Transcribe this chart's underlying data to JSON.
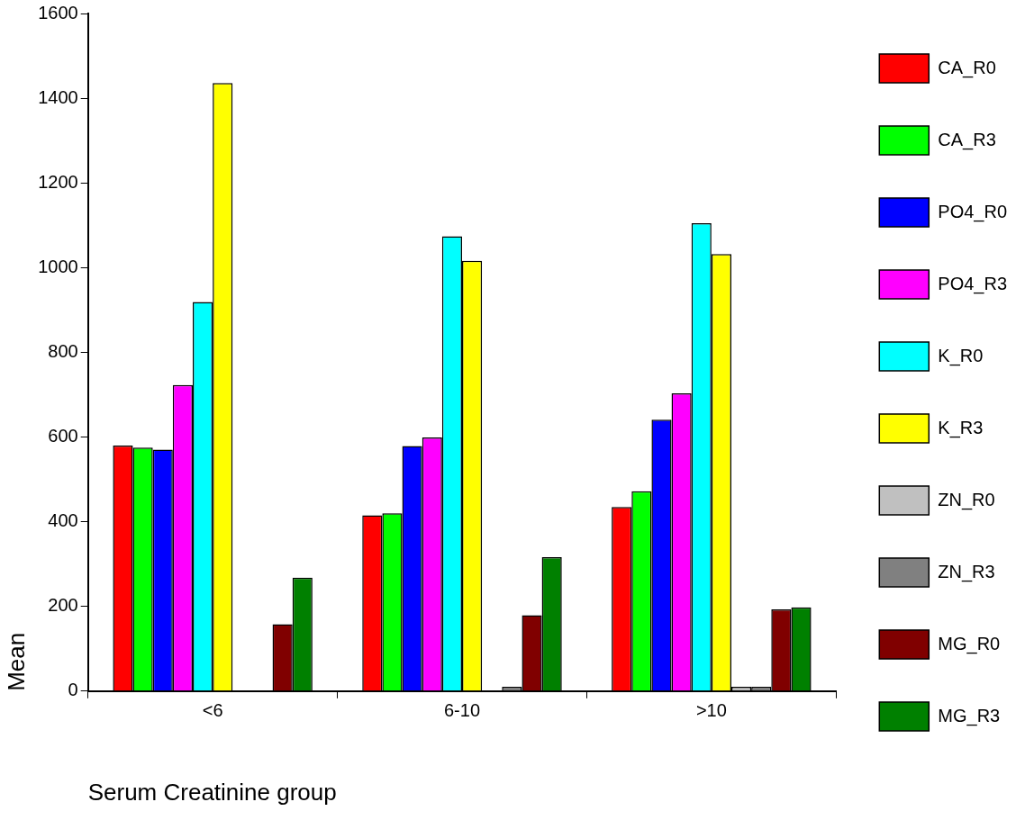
{
  "chart_data": {
    "type": "bar",
    "xlabel": "Serum Creatinine group",
    "ylabel": "Mean",
    "categories": [
      "<6",
      "6-10",
      ">10"
    ],
    "series": [
      {
        "name": "CA_R0",
        "color": "#ff0000",
        "values": [
          580,
          415,
          435
        ]
      },
      {
        "name": "CA_R3",
        "color": "#00ff00",
        "values": [
          575,
          420,
          472
        ]
      },
      {
        "name": "PO4_R0",
        "color": "#0000ff",
        "values": [
          570,
          579,
          641
        ]
      },
      {
        "name": "PO4_R3",
        "color": "#ff00ff",
        "values": [
          723,
          599,
          703
        ]
      },
      {
        "name": "K_R0",
        "color": "#00ffff",
        "values": [
          919,
          1074,
          1105
        ]
      },
      {
        "name": "K_R3",
        "color": "#ffff00",
        "values": [
          1436,
          1016,
          1032
        ]
      },
      {
        "name": "ZN_R0",
        "color": "#c0c0c0",
        "values": [
          null,
          null,
          10
        ]
      },
      {
        "name": "ZN_R3",
        "color": "#808080",
        "values": [
          null,
          10,
          10
        ]
      },
      {
        "name": "MG_R0",
        "color": "#800000",
        "values": [
          158,
          179,
          193
        ]
      },
      {
        "name": "MG_R3",
        "color": "#008000",
        "values": [
          268,
          316,
          198
        ]
      }
    ],
    "ylim": [
      0,
      1600
    ],
    "yticks": [
      0,
      200,
      400,
      600,
      800,
      1000,
      1200,
      1400,
      1600
    ],
    "grid": false,
    "legend": "right"
  }
}
